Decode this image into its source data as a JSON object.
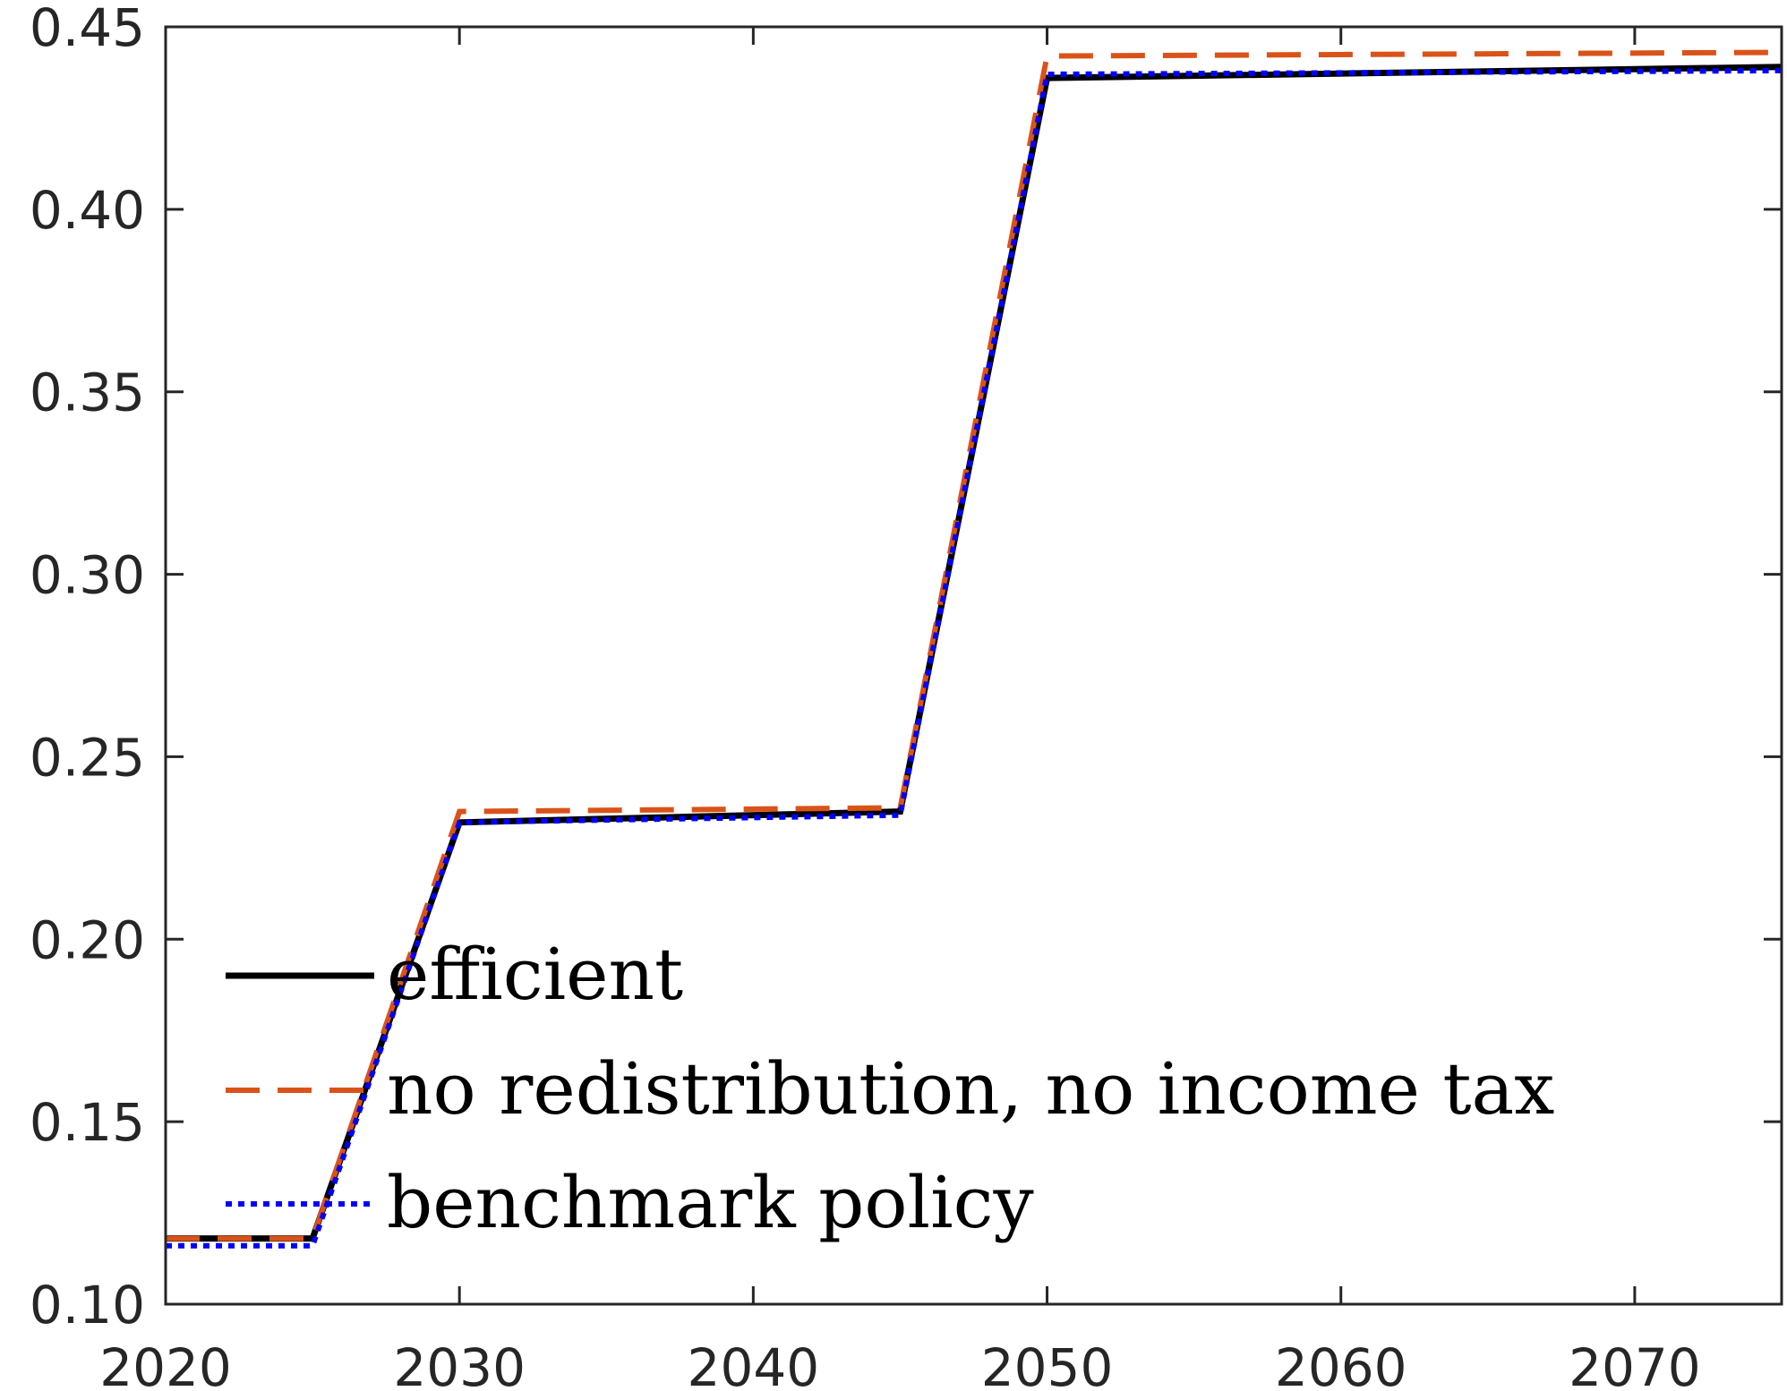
{
  "chart_data": {
    "type": "line",
    "title": "",
    "xlabel": "",
    "ylabel": "",
    "xlim": [
      2020,
      2075
    ],
    "ylim": [
      0.1,
      0.45
    ],
    "xticks": [
      2020,
      2030,
      2040,
      2050,
      2060,
      2070
    ],
    "xtick_labels": [
      "2020",
      "2030",
      "2040",
      "2050",
      "2060",
      "2070"
    ],
    "yticks": [
      0.1,
      0.15,
      0.2,
      0.25,
      0.3,
      0.35,
      0.4,
      0.45
    ],
    "ytick_labels": [
      "0.10",
      "0.15",
      "0.20",
      "0.25",
      "0.30",
      "0.35",
      "0.40",
      "0.45"
    ],
    "grid": false,
    "legend_position": "bottom-left",
    "series": [
      {
        "name": "efficient",
        "color": "#000000",
        "style": "solid",
        "x": [
          2020,
          2025,
          2030,
          2045,
          2050,
          2075
        ],
        "y": [
          0.118,
          0.118,
          0.232,
          0.235,
          0.436,
          0.439
        ]
      },
      {
        "name": "no redistribution, no income tax",
        "color": "#d95319",
        "style": "dashed",
        "x": [
          2020,
          2025,
          2030,
          2045,
          2050,
          2075
        ],
        "y": [
          0.118,
          0.118,
          0.235,
          0.236,
          0.442,
          0.443
        ]
      },
      {
        "name": "benchmark policy",
        "color": "#0000ff",
        "style": "dotted",
        "x": [
          2020,
          2025,
          2030,
          2045,
          2050,
          2075
        ],
        "y": [
          0.116,
          0.116,
          0.232,
          0.234,
          0.437,
          0.438
        ]
      }
    ]
  }
}
